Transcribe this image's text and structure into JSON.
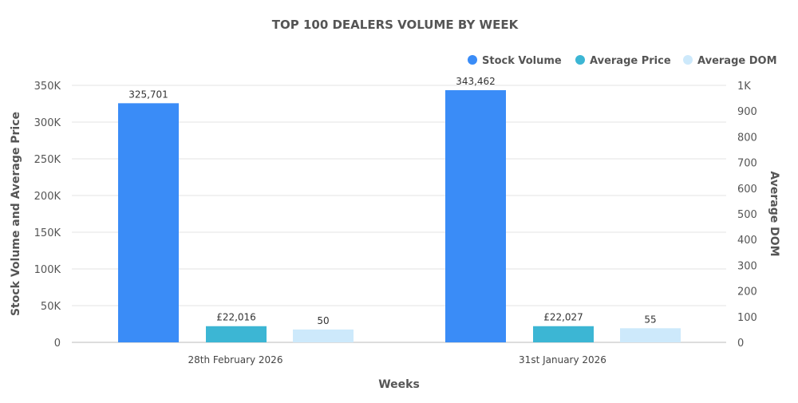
{
  "chart_data": {
    "type": "bar",
    "title": "TOP 100 DEALERS VOLUME BY WEEK",
    "xlabel": "Weeks",
    "ylabel": "Stock Volume and Average Price",
    "y2label": "Average DOM",
    "categories": [
      "28th February 2026",
      "31st January 2026"
    ],
    "series": [
      {
        "name": "Stock Volume",
        "axis": "left",
        "values": [
          325701,
          343462
        ],
        "labels": [
          "325,701",
          "343,462"
        ],
        "color": "#3a8cf7"
      },
      {
        "name": "Average Price",
        "axis": "left",
        "values": [
          22016,
          22027
        ],
        "labels": [
          "£22,016",
          "£22,027"
        ],
        "color": "#3cb6d4"
      },
      {
        "name": "Average DOM",
        "axis": "right",
        "values": [
          50,
          55
        ],
        "labels": [
          "50",
          "55"
        ],
        "color": "#cde9fb"
      }
    ],
    "ylim": [
      0,
      350000
    ],
    "y2lim": [
      0,
      1000
    ],
    "yticks": [
      "0",
      "50K",
      "100K",
      "150K",
      "200K",
      "250K",
      "300K",
      "350K"
    ],
    "y2ticks": [
      "0",
      "100",
      "200",
      "300",
      "400",
      "500",
      "600",
      "700",
      "800",
      "900",
      "1K"
    ],
    "grid": true,
    "legend": "top-right"
  }
}
